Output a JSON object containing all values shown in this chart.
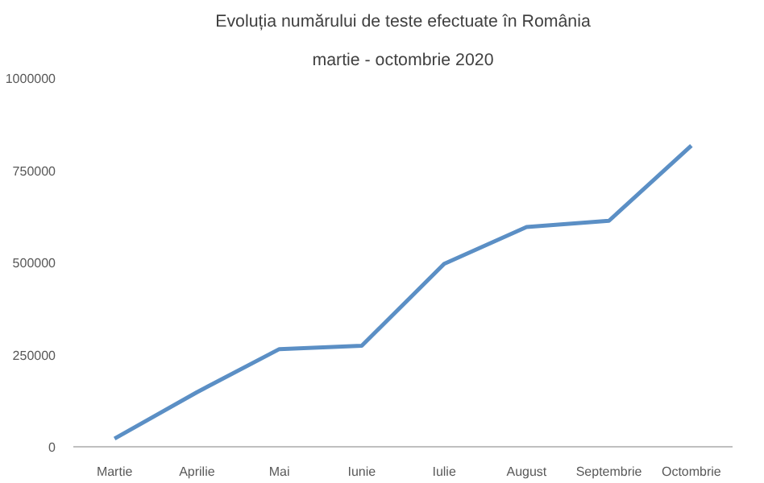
{
  "chart_data": {
    "type": "line",
    "title": "Evoluția numărului de teste efectuate în România",
    "subtitle": "martie - octombrie 2020",
    "categories": [
      "Martie",
      "Aprilie",
      "Mai",
      "Iunie",
      "Iulie",
      "August",
      "Septembrie",
      "Octombrie"
    ],
    "series": [
      {
        "color": "#5b8fc5",
        "values": [
          22000,
          148000,
          265000,
          274000,
          496000,
          596000,
          613000,
          817000
        ]
      }
    ],
    "ylim": [
      0,
      1000000
    ],
    "yticks": [
      0,
      250000,
      500000,
      750000,
      1000000
    ],
    "grid": false,
    "marker": "none",
    "line_style": "solid"
  }
}
